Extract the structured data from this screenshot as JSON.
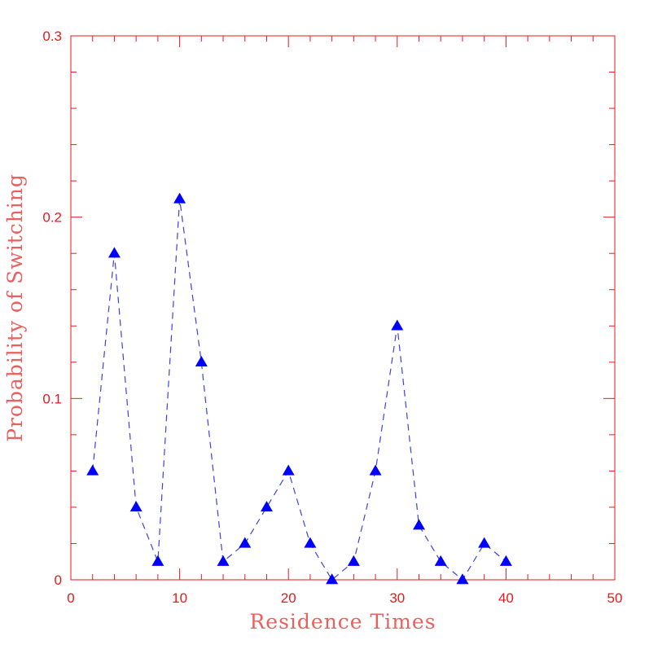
{
  "chart_data": {
    "type": "line",
    "xlabel": "Residence Times",
    "ylabel": "Probability of Switching",
    "xlim": [
      0,
      50
    ],
    "ylim": [
      0,
      0.3
    ],
    "x_ticks": [
      "0",
      "10",
      "20",
      "30",
      "40",
      "50"
    ],
    "y_ticks": [
      "0",
      "0.1",
      "0.2",
      "0.3"
    ],
    "grid": false,
    "axis_color": "#e8191d",
    "series": [
      {
        "marker": "triangle",
        "line_style": "dashed",
        "marker_color": "#0000ff",
        "line_color": "#4040e0",
        "x": [
          2,
          4,
          6,
          8,
          10,
          12,
          14,
          16,
          18,
          20,
          22,
          24,
          26,
          28,
          30,
          32,
          34,
          36,
          38,
          40
        ],
        "y": [
          0.06,
          0.18,
          0.04,
          0.01,
          0.21,
          0.12,
          0.01,
          0.02,
          0.04,
          0.06,
          0.02,
          0.0,
          0.01,
          0.06,
          0.14,
          0.03,
          0.01,
          0.0,
          0.02,
          0.01
        ]
      }
    ]
  }
}
